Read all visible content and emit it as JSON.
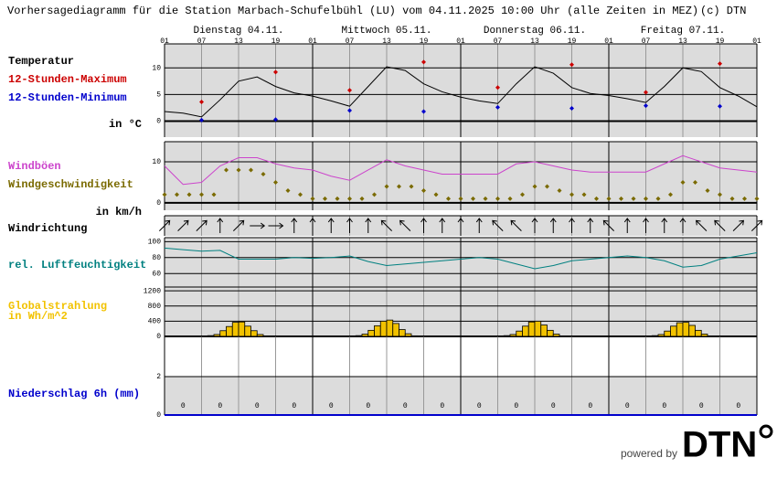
{
  "header": {
    "title": "Vorhersagediagramm für die Station Marbach-Schufelbühl (LU) vom 04.11.2025 10:00 Uhr (alle Zeiten in MEZ)",
    "copyright": "(c) DTN"
  },
  "days": [
    "Dienstag 04.11.",
    "Mittwoch 05.11.",
    "Donnerstag 06.11.",
    "Freitag 07.11."
  ],
  "footer": {
    "text": "powered by",
    "logo": "DTN"
  },
  "chart_data": [
    {
      "type": "line",
      "unit": "in °C",
      "xlim": [
        0,
        96
      ],
      "xticks": [
        {
          "value": 0,
          "label": "01"
        },
        {
          "value": 6,
          "label": "07"
        },
        {
          "value": 12,
          "label": "13"
        },
        {
          "value": 18,
          "label": "19"
        },
        {
          "value": 24,
          "label": "01"
        },
        {
          "value": 30,
          "label": "07"
        },
        {
          "value": 36,
          "label": "13"
        },
        {
          "value": 42,
          "label": "19"
        },
        {
          "value": 48,
          "label": "01"
        },
        {
          "value": 54,
          "label": "07"
        },
        {
          "value": 60,
          "label": "13"
        },
        {
          "value": 66,
          "label": "19"
        },
        {
          "value": 72,
          "label": "01"
        },
        {
          "value": 78,
          "label": "07"
        },
        {
          "value": 84,
          "label": "13"
        },
        {
          "value": 90,
          "label": "19"
        },
        {
          "value": 96,
          "label": "01"
        }
      ],
      "ylim": [
        -3,
        14.5
      ],
      "yticks": [
        0,
        5,
        10
      ],
      "series": [
        {
          "name": "Temperatur",
          "type": "line",
          "color": "#000000",
          "x": [
            0,
            3,
            6,
            9,
            12,
            15,
            18,
            21,
            24,
            27,
            30,
            33,
            36,
            39,
            42,
            45,
            48,
            51,
            54,
            57,
            60,
            63,
            66,
            69,
            72,
            75,
            78,
            81,
            84,
            87,
            90,
            93,
            96
          ],
          "values": [
            1.8,
            1.5,
            0.8,
            4,
            7.5,
            8.3,
            6.5,
            5.3,
            4.7,
            3.8,
            2.8,
            6.5,
            10.2,
            9.5,
            7,
            5.5,
            4.5,
            3.8,
            3.3,
            7,
            10.2,
            9,
            6.3,
            5.2,
            4.8,
            4.2,
            3.5,
            6.5,
            10,
            9.3,
            6.3,
            4.7,
            2.7
          ]
        },
        {
          "name": "12-Stunden-Maximum",
          "type": "scatter",
          "color": "#cc0000",
          "x": [
            6,
            18,
            30,
            42,
            54,
            66,
            78,
            90
          ],
          "values": [
            3.6,
            9.2,
            5.8,
            11.1,
            6.3,
            10.6,
            5.4,
            10.8
          ]
        },
        {
          "name": "12-Stunden-Minimum",
          "type": "scatter",
          "color": "#0000cc",
          "x": [
            6,
            18,
            30,
            42,
            54,
            66,
            78,
            90
          ],
          "values": [
            0.2,
            0.3,
            2,
            1.8,
            2.6,
            2.4,
            2.9,
            2.8
          ]
        }
      ]
    },
    {
      "type": "line",
      "unit": "in km/h",
      "xlim": [
        0,
        96
      ],
      "ylim": [
        -1.8,
        14.9
      ],
      "yticks": [
        0,
        10
      ],
      "series": [
        {
          "name": "Windböen",
          "type": "line",
          "color": "#cc44cc",
          "x": [
            0,
            3,
            6,
            9,
            12,
            15,
            18,
            21,
            24,
            27,
            30,
            33,
            36,
            39,
            42,
            45,
            48,
            51,
            54,
            57,
            60,
            63,
            66,
            69,
            72,
            75,
            78,
            81,
            84,
            87,
            90,
            93,
            96
          ],
          "values": [
            9,
            4.5,
            5,
            9,
            11,
            11,
            9.5,
            8.5,
            8,
            6.5,
            5.5,
            8,
            10.5,
            9,
            8,
            7,
            7,
            7,
            7,
            9.5,
            10,
            9,
            8,
            7.5,
            7.5,
            7.5,
            7.5,
            9.5,
            11.5,
            10,
            8.5,
            8,
            7.5
          ]
        },
        {
          "name": "Windgeschwindigkeit",
          "type": "scatter",
          "color": "#7a6a00",
          "x": [
            0,
            2,
            4,
            6,
            8,
            10,
            12,
            14,
            16,
            18,
            20,
            22,
            24,
            26,
            28,
            30,
            32,
            34,
            36,
            38,
            40,
            42,
            44,
            46,
            48,
            50,
            52,
            54,
            56,
            58,
            60,
            62,
            64,
            66,
            68,
            70,
            72,
            74,
            76,
            78,
            80,
            82,
            84,
            86,
            88,
            90,
            92,
            94,
            96
          ],
          "values": [
            2,
            2,
            2,
            2,
            2,
            8,
            8,
            8,
            7,
            5,
            3,
            2,
            1,
            1,
            1,
            1,
            1,
            2,
            4,
            4,
            4,
            3,
            2,
            1,
            1,
            1,
            1,
            1,
            1,
            2,
            4,
            4,
            3,
            2,
            2,
            1,
            1,
            1,
            1,
            1,
            1,
            2,
            5,
            5,
            3,
            2,
            1,
            1,
            1
          ]
        }
      ]
    },
    {
      "type": "arrows",
      "xlim": [
        0,
        96
      ],
      "series": [
        {
          "name": "Windrichtung",
          "color": "#000000",
          "x": [
            0,
            3,
            6,
            9,
            12,
            15,
            18,
            21,
            24,
            27,
            30,
            33,
            36,
            39,
            42,
            45,
            48,
            51,
            54,
            57,
            60,
            63,
            66,
            69,
            72,
            75,
            78,
            81,
            84,
            87,
            90,
            93,
            96
          ],
          "values": [
            225,
            225,
            225,
            180,
            225,
            270,
            270,
            180,
            180,
            180,
            180,
            180,
            135,
            135,
            180,
            180,
            180,
            180,
            135,
            135,
            180,
            180,
            180,
            180,
            135,
            180,
            180,
            180,
            180,
            135,
            135,
            225,
            225
          ]
        }
      ]
    },
    {
      "type": "line",
      "xlim": [
        0,
        96
      ],
      "ylim": [
        43,
        105
      ],
      "yticks": [
        60,
        80,
        100
      ],
      "series": [
        {
          "name": "rel. Luftfeuchtigkeit",
          "type": "line",
          "color": "#008080",
          "x": [
            0,
            3,
            6,
            9,
            12,
            15,
            18,
            21,
            24,
            27,
            30,
            33,
            36,
            39,
            42,
            45,
            48,
            51,
            54,
            57,
            60,
            63,
            66,
            69,
            72,
            75,
            78,
            81,
            84,
            87,
            90,
            93,
            96
          ],
          "values": [
            92,
            90,
            88,
            89,
            78,
            78,
            78,
            80,
            79,
            80,
            82,
            75,
            70,
            72,
            74,
            76,
            78,
            80,
            78,
            72,
            66,
            70,
            76,
            78,
            80,
            82,
            80,
            76,
            68,
            70,
            78,
            82,
            86
          ]
        }
      ]
    },
    {
      "type": "bar",
      "unit": "in Wh/m^2",
      "xlim": [
        0,
        96
      ],
      "ylim": [
        0,
        1300
      ],
      "yticks": [
        0,
        400,
        800,
        1200
      ],
      "series": [
        {
          "name": "Globalstrahlung",
          "color": "#f2c200",
          "x": [
            7.5,
            8.5,
            9.5,
            10.5,
            11.5,
            12.5,
            13.5,
            14.5,
            15.5,
            16.5,
            31.5,
            32.5,
            33.5,
            34.5,
            35.5,
            36.5,
            37.5,
            38.5,
            39.5,
            40.5,
            55.5,
            56.5,
            57.5,
            58.5,
            59.5,
            60.5,
            61.5,
            62.5,
            63.5,
            64.5,
            79.5,
            80.5,
            81.5,
            82.5,
            83.5,
            84.5,
            85.5,
            86.5,
            87.5,
            88.5
          ],
          "values": [
            20,
            50,
            150,
            260,
            370,
            380,
            270,
            150,
            50,
            10,
            20,
            60,
            160,
            280,
            400,
            430,
            340,
            180,
            70,
            15,
            20,
            50,
            140,
            270,
            380,
            400,
            300,
            160,
            60,
            10,
            20,
            50,
            140,
            270,
            360,
            370,
            290,
            160,
            60,
            10
          ]
        }
      ]
    },
    {
      "type": "bar",
      "xlim": [
        0,
        96
      ],
      "ylim": [
        0,
        4.1
      ],
      "yticks": [
        0,
        2
      ],
      "data_labels": true,
      "series": [
        {
          "name": "Niederschlag 6h (mm)",
          "color": "#0000cc",
          "x": [
            3,
            9,
            15,
            21,
            27,
            33,
            39,
            45,
            51,
            57,
            63,
            69,
            75,
            81,
            87,
            93
          ],
          "values": [
            0,
            0,
            0,
            0,
            0,
            0,
            0,
            0,
            0,
            0,
            0,
            0,
            0,
            0,
            0,
            0
          ]
        }
      ]
    }
  ]
}
